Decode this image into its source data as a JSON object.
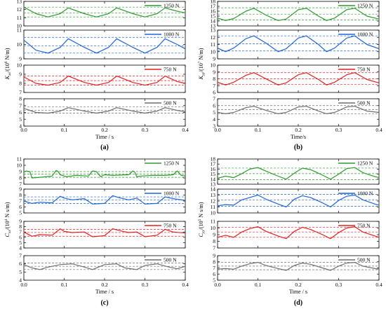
{
  "figure": {
    "panels": [
      {
        "letter": "(a)",
        "ylabel_main": "K",
        "ylabel_sub": "xx",
        "ylabel_pre": "/(10",
        "ylabel_sup": "6",
        "ylabel_post": " N/m)",
        "xlabel": "Time / s"
      },
      {
        "letter": "(b)",
        "ylabel_main": "K",
        "ylabel_sub": "yy",
        "ylabel_pre": "/(10",
        "ylabel_sup": "7",
        "ylabel_post": " N/m)",
        "xlabel": "Time/s"
      },
      {
        "letter": "(c)",
        "ylabel_main": "C",
        "ylabel_sub": "xx",
        "ylabel_pre": "/(10",
        "ylabel_sup": "4",
        "ylabel_post": " N s/m)",
        "xlabel": "Time / s"
      },
      {
        "letter": "(d)",
        "ylabel_main": "C",
        "ylabel_sub": "yy",
        "ylabel_pre": "/(10",
        "ylabel_sup": "5",
        "ylabel_post": " N s/m)",
        "xlabel": "Time / s"
      }
    ]
  },
  "chart_data": [
    {
      "type": "line",
      "panel": "(a)",
      "xlabel": "Time / s",
      "ylabel": "Kxx/(10^6 N/m)",
      "xlim": [
        0,
        0.4
      ],
      "x_ticks": [
        "0.0",
        "0.1",
        "0.2",
        "0.3",
        "0.4"
      ],
      "subplots": [
        {
          "name": "1250 N",
          "color": "#2e9a2e",
          "ylim": [
            10,
            13
          ],
          "y_ticks": [
            "10",
            "11",
            "12",
            "13"
          ],
          "x": [
            0,
            0.03,
            0.06,
            0.09,
            0.11,
            0.15,
            0.18,
            0.21,
            0.23,
            0.27,
            0.3,
            0.33,
            0.35,
            0.38,
            0.4
          ],
          "values": [
            12.3,
            11.5,
            11.1,
            11.5,
            12.2,
            11.5,
            11.1,
            11.5,
            12.2,
            11.5,
            11.1,
            11.5,
            12.2,
            11.8,
            11.6
          ],
          "bounds": [
            12.3,
            11.6,
            11.1
          ]
        },
        {
          "name": "1000 N",
          "color": "#1f63d6",
          "ylim": [
            9,
            11
          ],
          "y_ticks": [
            "9",
            "10",
            "11"
          ],
          "x": [
            0,
            0.03,
            0.06,
            0.09,
            0.11,
            0.15,
            0.18,
            0.21,
            0.23,
            0.27,
            0.3,
            0.33,
            0.35,
            0.38,
            0.4
          ],
          "values": [
            10.3,
            9.6,
            9.4,
            9.8,
            10.4,
            9.8,
            9.4,
            9.8,
            10.4,
            9.8,
            9.4,
            9.8,
            10.4,
            10.0,
            9.7
          ],
          "bounds": [
            10.5,
            9.9,
            9.4
          ]
        },
        {
          "name": "750 N",
          "color": "#e02020",
          "ylim": [
            7,
            10
          ],
          "y_ticks": [
            "7",
            "8",
            "9",
            "10"
          ],
          "x": [
            0,
            0.03,
            0.06,
            0.09,
            0.11,
            0.15,
            0.18,
            0.21,
            0.23,
            0.27,
            0.3,
            0.33,
            0.35,
            0.38,
            0.4
          ],
          "values": [
            8.7,
            8.0,
            7.8,
            8.1,
            8.8,
            8.1,
            7.8,
            8.1,
            8.8,
            8.1,
            7.8,
            8.1,
            8.8,
            8.2,
            8.0
          ],
          "bounds": [
            8.8,
            8.3,
            7.8
          ]
        },
        {
          "name": "500 N",
          "color": "#6e6e6e",
          "ylim": [
            4,
            8
          ],
          "y_ticks": [
            "4",
            "5",
            "6",
            "7",
            "8"
          ],
          "x": [
            0,
            0.03,
            0.06,
            0.09,
            0.11,
            0.15,
            0.18,
            0.21,
            0.23,
            0.27,
            0.3,
            0.33,
            0.35,
            0.38,
            0.4
          ],
          "values": [
            6.6,
            6.0,
            5.9,
            6.2,
            6.7,
            6.2,
            5.9,
            6.2,
            6.7,
            6.2,
            5.9,
            6.2,
            6.7,
            6.3,
            6.1
          ],
          "bounds": [
            6.8,
            6.3,
            5.9
          ]
        }
      ]
    },
    {
      "type": "line",
      "panel": "(b)",
      "xlabel": "Time/s",
      "ylabel": "Kyy/(10^7 N/m)",
      "xlim": [
        0,
        0.4
      ],
      "x_ticks": [
        "0.0",
        "0.1",
        "0.2",
        "0.3",
        "0.4"
      ],
      "subplots": [
        {
          "name": "1250 N",
          "color": "#2e9a2e",
          "ylim": [
            13,
            18
          ],
          "y_ticks": [
            "13",
            "14",
            "15",
            "16",
            "17",
            "18"
          ],
          "x": [
            0,
            0.02,
            0.04,
            0.07,
            0.09,
            0.12,
            0.15,
            0.17,
            0.2,
            0.22,
            0.25,
            0.27,
            0.29,
            0.32,
            0.34,
            0.37,
            0.4
          ],
          "values": [
            14.6,
            14.1,
            14.5,
            16.0,
            16.6,
            15.2,
            14.1,
            14.4,
            16.3,
            16.6,
            15.0,
            14.1,
            14.6,
            16.3,
            16.6,
            15.0,
            14.4
          ],
          "bounds": [
            16.7,
            15.4,
            14.2
          ]
        },
        {
          "name": "1000 N",
          "color": "#1f63d6",
          "ylim": [
            9,
            13
          ],
          "y_ticks": [
            "9",
            "10",
            "11",
            "12",
            "13"
          ],
          "x": [
            0,
            0.02,
            0.04,
            0.07,
            0.09,
            0.12,
            0.15,
            0.17,
            0.2,
            0.22,
            0.25,
            0.27,
            0.29,
            0.32,
            0.34,
            0.37,
            0.4
          ],
          "values": [
            10.5,
            10.0,
            10.5,
            11.8,
            12.2,
            11.2,
            10.0,
            10.4,
            11.9,
            12.2,
            11.0,
            10.0,
            10.5,
            11.9,
            12.2,
            11.0,
            10.4
          ],
          "bounds": [
            12.2,
            11.1,
            10.1
          ]
        },
        {
          "name": "750 N",
          "color": "#e02020",
          "ylim": [
            6,
            10
          ],
          "y_ticks": [
            "6",
            "7",
            "8",
            "9",
            "10"
          ],
          "x": [
            0,
            0.02,
            0.04,
            0.07,
            0.09,
            0.12,
            0.15,
            0.17,
            0.2,
            0.22,
            0.25,
            0.27,
            0.29,
            0.32,
            0.34,
            0.37,
            0.4
          ],
          "values": [
            7.5,
            7.1,
            7.5,
            8.5,
            8.9,
            8.0,
            7.1,
            7.4,
            8.6,
            8.9,
            7.9,
            7.1,
            7.5,
            8.6,
            8.9,
            7.9,
            7.4
          ],
          "bounds": [
            8.9,
            8.0,
            7.2
          ]
        },
        {
          "name": "500 N",
          "color": "#6e6e6e",
          "ylim": [
            3,
            7
          ],
          "y_ticks": [
            "3",
            "4",
            "5",
            "6",
            "7"
          ],
          "x": [
            0,
            0.02,
            0.04,
            0.07,
            0.09,
            0.12,
            0.15,
            0.17,
            0.2,
            0.22,
            0.25,
            0.27,
            0.29,
            0.32,
            0.34,
            0.37,
            0.4
          ],
          "values": [
            5.0,
            4.8,
            5.0,
            5.7,
            5.9,
            5.3,
            4.8,
            5.0,
            5.8,
            5.9,
            5.2,
            4.8,
            5.0,
            5.8,
            5.9,
            5.2,
            5.0
          ],
          "bounds": [
            6.0,
            5.4,
            4.8
          ]
        }
      ]
    },
    {
      "type": "line",
      "panel": "(c)",
      "xlabel": "Time / s",
      "ylabel": "Cxx/(10^4 N s/m)",
      "xlim": [
        0,
        0.4
      ],
      "x_ticks": [
        "0.0",
        "0.1",
        "0.2",
        "0.3",
        "0.4"
      ],
      "subplots": [
        {
          "name": "1250 N",
          "color": "#2e9a2e",
          "ylim": [
            7,
            11
          ],
          "y_ticks": [
            "7",
            "8",
            "9",
            "10",
            "11"
          ],
          "x": [
            0,
            0.005,
            0.015,
            0.02,
            0.04,
            0.07,
            0.08,
            0.085,
            0.09,
            0.1,
            0.105,
            0.13,
            0.16,
            0.17,
            0.18,
            0.19,
            0.2,
            0.22,
            0.26,
            0.27,
            0.275,
            0.28,
            0.29,
            0.32,
            0.35,
            0.37,
            0.38,
            0.39,
            0.4
          ],
          "values": [
            8.9,
            9.1,
            9.0,
            8.0,
            8.1,
            8.3,
            9.2,
            9.0,
            8.5,
            8.3,
            8.2,
            8.4,
            8.3,
            9.1,
            9.0,
            8.2,
            8.5,
            8.4,
            8.5,
            9.1,
            8.9,
            8.2,
            8.3,
            8.4,
            8.4,
            8.5,
            9.1,
            8.4,
            8.3
          ],
          "bounds": [
            9.0,
            8.6,
            8.1
          ]
        },
        {
          "name": "1000 N",
          "color": "#1f63d6",
          "ylim": [
            5,
            9
          ],
          "y_ticks": [
            "5",
            "6",
            "7",
            "8",
            "9"
          ],
          "x": [
            0,
            0.02,
            0.04,
            0.07,
            0.09,
            0.1,
            0.12,
            0.15,
            0.17,
            0.2,
            0.22,
            0.24,
            0.26,
            0.28,
            0.3,
            0.33,
            0.35,
            0.37,
            0.4
          ],
          "values": [
            7.0,
            6.6,
            6.8,
            6.7,
            7.8,
            7.5,
            7.2,
            7.4,
            6.5,
            6.6,
            7.9,
            7.5,
            7.2,
            7.5,
            6.5,
            6.6,
            7.7,
            7.4,
            7.1
          ],
          "bounds": [
            7.7,
            7.2,
            6.6
          ]
        },
        {
          "name": "750 N",
          "color": "#e02020",
          "ylim": [
            4,
            9
          ],
          "y_ticks": [
            "4",
            "5",
            "6",
            "7",
            "8",
            "9"
          ],
          "x": [
            0,
            0.02,
            0.04,
            0.07,
            0.09,
            0.1,
            0.12,
            0.15,
            0.17,
            0.2,
            0.22,
            0.24,
            0.26,
            0.28,
            0.3,
            0.33,
            0.35,
            0.37,
            0.4
          ],
          "values": [
            7.0,
            6.2,
            6.5,
            6.4,
            7.6,
            7.1,
            6.9,
            7.0,
            6.1,
            6.3,
            7.6,
            7.2,
            6.9,
            7.0,
            6.1,
            6.4,
            7.5,
            7.0,
            6.8
          ],
          "bounds": [
            7.5,
            6.9,
            6.2
          ]
        },
        {
          "name": "500 N",
          "color": "#6e6e6e",
          "ylim": [
            4,
            7
          ],
          "y_ticks": [
            "4",
            "5",
            "6",
            "7"
          ],
          "x": [
            0,
            0.02,
            0.04,
            0.06,
            0.09,
            0.12,
            0.15,
            0.17,
            0.2,
            0.23,
            0.25,
            0.28,
            0.3,
            0.33,
            0.36,
            0.38,
            0.4
          ],
          "values": [
            5.9,
            5.5,
            5.3,
            5.6,
            5.9,
            6.0,
            5.6,
            5.3,
            5.9,
            6.0,
            5.5,
            5.3,
            5.8,
            6.0,
            5.6,
            5.4,
            5.7
          ],
          "bounds": [
            6.1,
            5.7,
            5.3
          ]
        }
      ]
    },
    {
      "type": "line",
      "panel": "(d)",
      "xlabel": "Time / s",
      "ylabel": "Cyy/(10^5 N s/m)",
      "xlim": [
        0,
        0.4
      ],
      "x_ticks": [
        "0.0",
        "0.1",
        "0.2",
        "0.3",
        "0.4"
      ],
      "subplots": [
        {
          "name": "1250 N",
          "color": "#2e9a2e",
          "ylim": [
            13,
            18
          ],
          "y_ticks": [
            "13",
            "14",
            "15",
            "16",
            "17",
            "18"
          ],
          "x": [
            0,
            0.02,
            0.04,
            0.06,
            0.08,
            0.1,
            0.12,
            0.15,
            0.17,
            0.19,
            0.21,
            0.23,
            0.26,
            0.28,
            0.3,
            0.32,
            0.34,
            0.36,
            0.39,
            0.4
          ],
          "values": [
            14.2,
            14.6,
            14.3,
            15.1,
            16.0,
            16.3,
            15.6,
            14.6,
            14.0,
            15.2,
            16.2,
            15.9,
            14.8,
            14.0,
            15.0,
            16.1,
            16.3,
            15.3,
            14.5,
            14.3
          ],
          "bounds": [
            16.2,
            15.1,
            13.9
          ]
        },
        {
          "name": "1000 N",
          "color": "#1f63d6",
          "ylim": [
            10,
            14
          ],
          "y_ticks": [
            "10",
            "11",
            "12",
            "13",
            "14"
          ],
          "x": [
            0,
            0.02,
            0.04,
            0.06,
            0.08,
            0.1,
            0.12,
            0.15,
            0.17,
            0.19,
            0.21,
            0.23,
            0.26,
            0.28,
            0.3,
            0.32,
            0.34,
            0.36,
            0.39,
            0.4
          ],
          "values": [
            11.2,
            11.4,
            11.3,
            12.2,
            12.6,
            13.0,
            12.3,
            11.5,
            11.0,
            12.3,
            12.9,
            12.6,
            11.7,
            11.0,
            12.1,
            12.8,
            13.0,
            12.2,
            11.5,
            11.3
          ],
          "bounds": [
            13.1,
            12.2,
            11.1
          ]
        },
        {
          "name": "750 N",
          "color": "#e02020",
          "ylim": [
            7,
            11
          ],
          "y_ticks": [
            "7",
            "8",
            "9",
            "10",
            "11"
          ],
          "x": [
            0,
            0.02,
            0.04,
            0.06,
            0.08,
            0.1,
            0.12,
            0.15,
            0.17,
            0.19,
            0.21,
            0.23,
            0.26,
            0.28,
            0.3,
            0.32,
            0.34,
            0.36,
            0.39,
            0.4
          ],
          "values": [
            8.6,
            8.9,
            8.6,
            9.4,
            9.9,
            10.2,
            9.5,
            8.8,
            8.4,
            9.5,
            10.1,
            9.8,
            9.0,
            8.4,
            9.3,
            10.0,
            10.2,
            9.4,
            8.8,
            8.6
          ],
          "bounds": [
            10.1,
            9.4,
            8.6
          ]
        },
        {
          "name": "500 N",
          "color": "#6e6e6e",
          "ylim": [
            5,
            9
          ],
          "y_ticks": [
            "5",
            "6",
            "7",
            "8",
            "9"
          ],
          "x": [
            0,
            0.02,
            0.04,
            0.06,
            0.08,
            0.1,
            0.12,
            0.15,
            0.17,
            0.19,
            0.21,
            0.23,
            0.26,
            0.28,
            0.3,
            0.32,
            0.34,
            0.36,
            0.39,
            0.4
          ],
          "values": [
            6.8,
            6.9,
            6.8,
            7.3,
            7.7,
            7.9,
            7.4,
            6.9,
            6.6,
            7.4,
            7.8,
            7.6,
            7.0,
            6.6,
            7.3,
            7.8,
            7.9,
            7.3,
            6.9,
            6.8
          ],
          "bounds": [
            7.9,
            7.3,
            6.7
          ]
        }
      ]
    }
  ]
}
